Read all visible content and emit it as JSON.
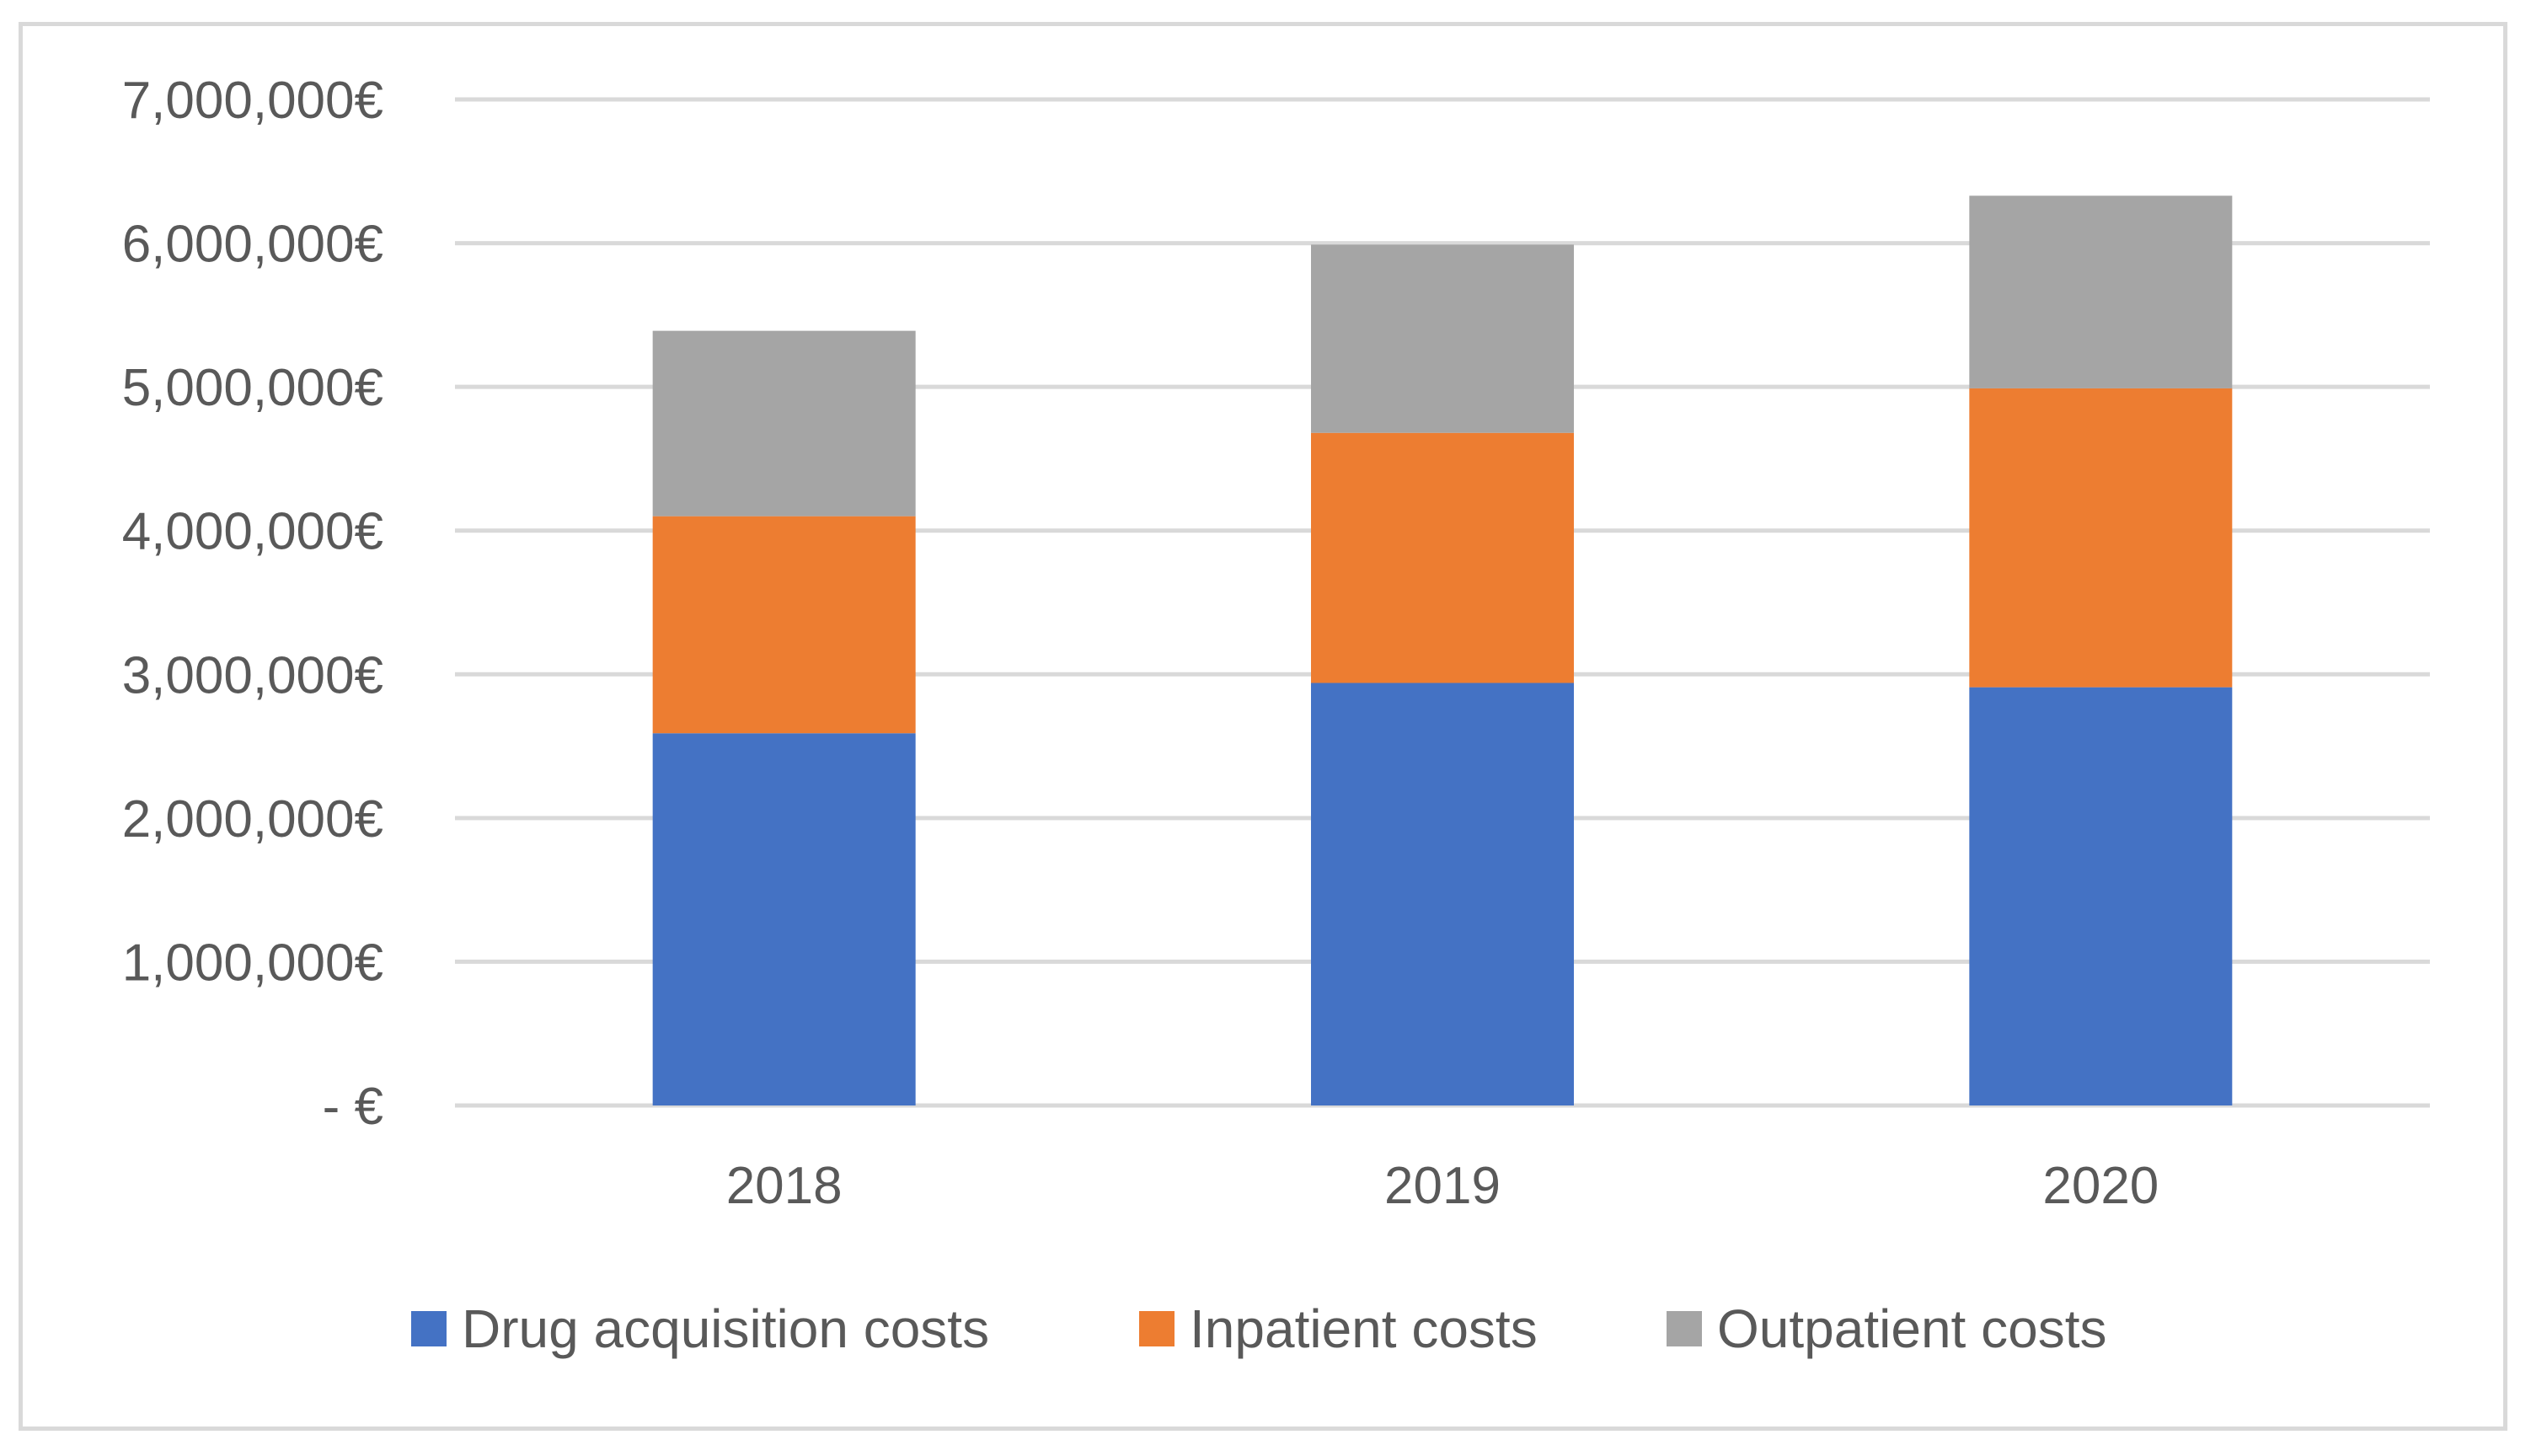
{
  "chart_data": {
    "type": "bar",
    "stacked": true,
    "title": "",
    "xlabel": "",
    "ylabel": "",
    "categories": [
      "2018",
      "2019",
      "2020"
    ],
    "series": [
      {
        "name": "Drug acquisition costs",
        "color": "#4472c4",
        "values": [
          2590000,
          2940000,
          2910000
        ]
      },
      {
        "name": "Inpatient costs",
        "color": "#ed7d31",
        "values": [
          1510000,
          1740000,
          2080000
        ]
      },
      {
        "name": "Outpatient costs",
        "color": "#a5a5a5",
        "values": [
          1290000,
          1310000,
          1340000
        ]
      }
    ],
    "ylim": [
      0,
      7000000
    ],
    "y_ticks": [
      0,
      1000000,
      2000000,
      3000000,
      4000000,
      5000000,
      6000000,
      7000000
    ],
    "y_tick_labels": [
      "- €",
      "1,000,000€",
      "2,000,000€",
      "3,000,000€",
      "4,000,000€",
      "5,000,000€",
      "6,000,000€",
      "7,000,000€"
    ],
    "grid": true,
    "legend_position": "bottom",
    "gridline_color": "#d9d9d9",
    "text_color": "#595959"
  }
}
